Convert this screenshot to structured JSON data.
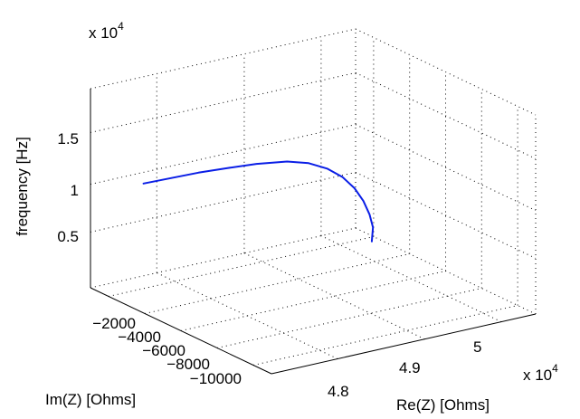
{
  "chart_data": {
    "type": "line",
    "projection": "3d",
    "grid": true,
    "xlabel": "Re(Z) [Ohms]",
    "ylabel": "Im(Z) [Ohms]",
    "zlabel": "frequency [Hz]",
    "x_exponent_label": "x 10",
    "x_exponent_power": "4",
    "z_exponent_label": "x 10",
    "z_exponent_power": "4",
    "x_ticks": [
      "4.8",
      "4.9",
      "5"
    ],
    "y_ticks": [
      "−2000",
      "−4000",
      "−6000",
      "−8000",
      "−10000"
    ],
    "z_ticks": [
      "0.5",
      "1",
      "1.5"
    ],
    "line_color": "#0a1ee6",
    "series": [
      {
        "x": [
          48000,
          48250,
          48500,
          48750,
          49000,
          49250,
          49400,
          49500,
          49550,
          49560,
          49520,
          49450,
          49350,
          49200
        ],
        "y": [
          -1000,
          -1300,
          -1600,
          -2000,
          -2400,
          -2900,
          -3400,
          -4000,
          -4700,
          -5400,
          -6200,
          -7000,
          -7800,
          -8600
        ],
        "z": [
          10400,
          10650,
          10900,
          11150,
          11350,
          11450,
          11350,
          11050,
          10600,
          10000,
          9400,
          8800,
          8300,
          7800
        ]
      }
    ]
  }
}
